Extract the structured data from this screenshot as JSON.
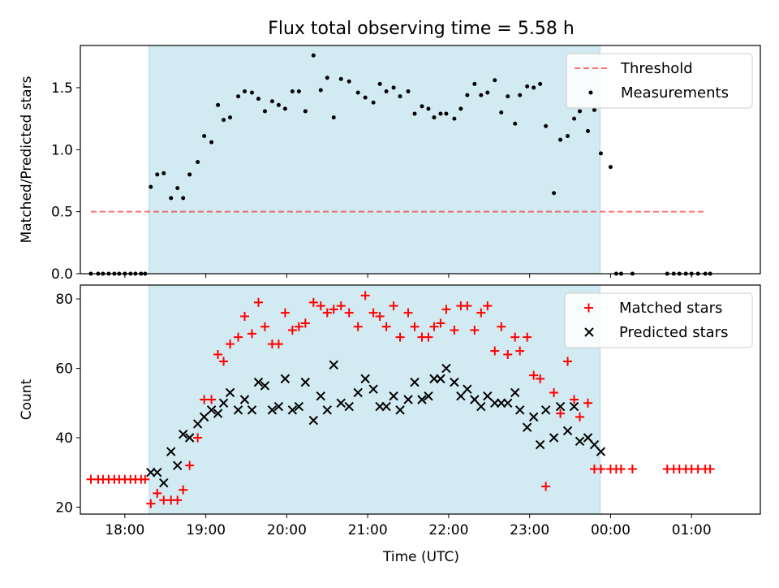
{
  "figure_title": "Flux total observing time = 5.58 h",
  "colors": {
    "observing_span": "#add8e6",
    "threshold": "#ff0000",
    "measurements": "#000000",
    "matched": "#ff0000",
    "predicted": "#000000"
  },
  "chart_data": [
    {
      "type": "scatter",
      "title": "Flux total observing time = 5.58 h",
      "ylabel": "Matched/Predicted stars",
      "xlim": [
        17.45,
        25.85
      ],
      "ylim": [
        0,
        1.84
      ],
      "xticks": [
        18,
        19,
        20,
        21,
        22,
        23,
        24,
        25
      ],
      "yticks": [
        0.0,
        0.5,
        1.0,
        1.5
      ],
      "ytick_labels": [
        "0.0",
        "0.5",
        "1.0",
        "1.5"
      ],
      "observing_span": [
        18.3,
        23.87
      ],
      "legend_position": "top-right",
      "grid": false,
      "series": [
        {
          "name": "Threshold",
          "kind": "line",
          "style": "dashed",
          "x": [
            17.58,
            25.17
          ],
          "y": [
            0.5,
            0.5
          ]
        },
        {
          "name": "Measurements",
          "kind": "points",
          "x": [
            17.58,
            17.67,
            17.73,
            17.8,
            17.87,
            17.93,
            18.0,
            18.07,
            18.13,
            18.2,
            18.25,
            18.32,
            18.4,
            18.48,
            18.57,
            18.65,
            18.72,
            18.8,
            18.9,
            18.98,
            19.07,
            19.15,
            19.22,
            19.3,
            19.4,
            19.48,
            19.57,
            19.65,
            19.73,
            19.82,
            19.9,
            19.98,
            20.07,
            20.15,
            20.23,
            20.33,
            20.42,
            20.5,
            20.58,
            20.67,
            20.77,
            20.88,
            20.97,
            21.07,
            21.15,
            21.23,
            21.32,
            21.4,
            21.5,
            21.58,
            21.67,
            21.75,
            21.82,
            21.9,
            21.97,
            22.07,
            22.15,
            22.23,
            22.32,
            22.4,
            22.48,
            22.57,
            22.65,
            22.73,
            22.82,
            22.88,
            22.97,
            23.05,
            23.13,
            23.2,
            23.3,
            23.38,
            23.47,
            23.55,
            23.62,
            23.72,
            23.8,
            23.88,
            24.0,
            24.07,
            24.13,
            24.27,
            24.7,
            24.78,
            24.85,
            24.93,
            25.0,
            25.08,
            25.17,
            25.23
          ],
          "y": [
            0,
            0,
            0,
            0,
            0,
            0,
            0,
            0,
            0,
            0,
            0,
            0.7,
            0.8,
            0.81,
            0.61,
            0.69,
            0.61,
            0.8,
            0.9,
            1.11,
            1.06,
            1.36,
            1.24,
            1.26,
            1.43,
            1.47,
            1.46,
            1.41,
            1.31,
            1.39,
            1.36,
            1.33,
            1.47,
            1.47,
            1.31,
            1.76,
            1.48,
            1.58,
            1.26,
            1.57,
            1.55,
            1.46,
            1.42,
            1.38,
            1.53,
            1.47,
            1.5,
            1.43,
            1.47,
            1.29,
            1.35,
            1.33,
            1.26,
            1.29,
            1.29,
            1.25,
            1.33,
            1.44,
            1.53,
            1.44,
            1.46,
            1.56,
            1.3,
            1.43,
            1.21,
            1.44,
            1.51,
            1.5,
            1.53,
            1.19,
            0.65,
            1.08,
            1.11,
            1.25,
            1.31,
            1.15,
            1.32,
            0.97,
            0.86,
            0,
            0,
            0,
            0,
            0,
            0,
            0,
            0,
            0,
            0,
            0
          ]
        }
      ]
    },
    {
      "type": "scatter",
      "xlabel": "Time (UTC)",
      "ylabel": "Count",
      "xlim": [
        17.45,
        25.85
      ],
      "ylim": [
        18,
        84
      ],
      "xticks": [
        18,
        19,
        20,
        21,
        22,
        23,
        24,
        25
      ],
      "xtick_labels": [
        "18:00",
        "19:00",
        "20:00",
        "21:00",
        "22:00",
        "23:00",
        "00:00",
        "01:00"
      ],
      "yticks": [
        20,
        40,
        60,
        80
      ],
      "ytick_labels": [
        "20",
        "40",
        "60",
        "80"
      ],
      "observing_span": [
        18.3,
        23.87
      ],
      "legend_position": "top-right",
      "grid": false,
      "series": [
        {
          "name": "Matched stars",
          "kind": "plus",
          "x": [
            17.58,
            17.67,
            17.73,
            17.8,
            17.87,
            17.93,
            18.0,
            18.07,
            18.13,
            18.2,
            18.25,
            18.32,
            18.4,
            18.48,
            18.57,
            18.65,
            18.72,
            18.8,
            18.9,
            18.98,
            19.07,
            19.15,
            19.22,
            19.3,
            19.4,
            19.48,
            19.57,
            19.65,
            19.73,
            19.82,
            19.9,
            19.98,
            20.07,
            20.15,
            20.23,
            20.33,
            20.42,
            20.5,
            20.58,
            20.67,
            20.77,
            20.88,
            20.97,
            21.07,
            21.15,
            21.23,
            21.32,
            21.4,
            21.5,
            21.58,
            21.67,
            21.75,
            21.82,
            21.9,
            21.97,
            22.07,
            22.15,
            22.23,
            22.32,
            22.4,
            22.48,
            22.57,
            22.65,
            22.73,
            22.82,
            22.88,
            22.97,
            23.05,
            23.13,
            23.2,
            23.3,
            23.38,
            23.47,
            23.55,
            23.62,
            23.72,
            23.8,
            23.88,
            24.0,
            24.07,
            24.13,
            24.27,
            24.7,
            24.78,
            24.85,
            24.93,
            25.0,
            25.08,
            25.17,
            25.23
          ],
          "y": [
            28,
            28,
            28,
            28,
            28,
            28,
            28,
            28,
            28,
            28,
            28,
            21,
            24,
            22,
            22,
            22,
            25,
            32,
            40,
            51,
            51,
            64,
            62,
            67,
            69,
            75,
            70,
            79,
            72,
            67,
            67,
            76,
            71,
            72,
            73,
            79,
            78,
            76,
            77,
            78,
            76,
            72,
            81,
            76,
            75,
            72,
            78,
            69,
            76,
            72,
            69,
            69,
            72,
            73,
            77,
            71,
            78,
            78,
            71,
            76,
            78,
            65,
            72,
            64,
            69,
            65,
            69,
            58,
            57,
            26,
            53,
            47,
            62,
            51,
            46,
            50,
            31,
            31,
            31,
            31,
            31,
            31,
            31,
            31,
            31,
            31,
            31,
            31,
            31,
            31
          ]
        },
        {
          "name": "Predicted stars",
          "kind": "cross",
          "x": [
            18.32,
            18.4,
            18.48,
            18.57,
            18.65,
            18.72,
            18.8,
            18.9,
            18.98,
            19.07,
            19.15,
            19.22,
            19.3,
            19.4,
            19.48,
            19.57,
            19.65,
            19.73,
            19.82,
            19.9,
            19.98,
            20.07,
            20.15,
            20.23,
            20.33,
            20.42,
            20.5,
            20.58,
            20.67,
            20.77,
            20.88,
            20.97,
            21.07,
            21.15,
            21.23,
            21.32,
            21.4,
            21.5,
            21.58,
            21.67,
            21.75,
            21.82,
            21.9,
            21.97,
            22.07,
            22.15,
            22.23,
            22.32,
            22.4,
            22.48,
            22.57,
            22.65,
            22.73,
            22.82,
            22.88,
            22.97,
            23.05,
            23.13,
            23.2,
            23.3,
            23.38,
            23.47,
            23.55,
            23.62,
            23.72,
            23.8,
            23.88
          ],
          "y": [
            30,
            30,
            27,
            36,
            32,
            41,
            40,
            44,
            46,
            48,
            47,
            50,
            53,
            48,
            51,
            48,
            56,
            55,
            48,
            49,
            57,
            48,
            49,
            56,
            45,
            52,
            48,
            61,
            50,
            49,
            53,
            57,
            54,
            49,
            49,
            52,
            48,
            51,
            56,
            51,
            52,
            57,
            57,
            60,
            56,
            52,
            54,
            51,
            49,
            52,
            50,
            50,
            50,
            53,
            48,
            43,
            46,
            38,
            48,
            40,
            49,
            42,
            49,
            39,
            40,
            38,
            36
          ]
        }
      ]
    }
  ]
}
